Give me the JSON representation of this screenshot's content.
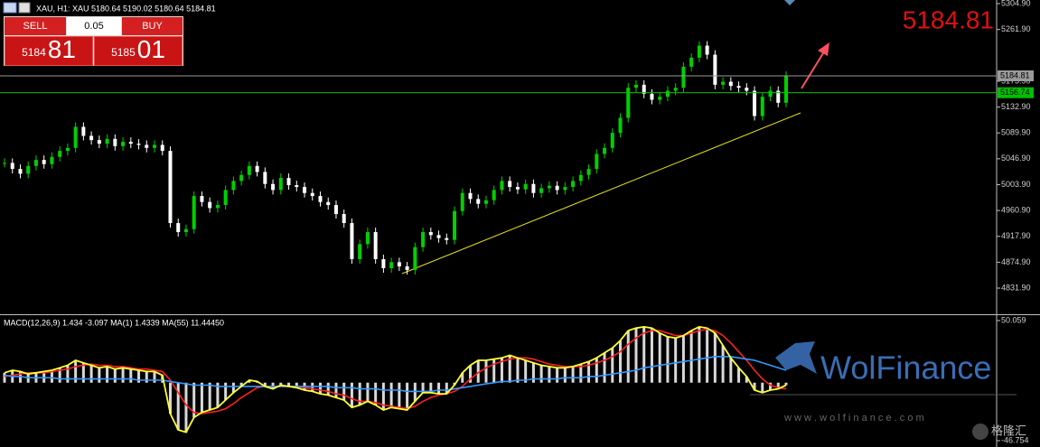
{
  "header": {
    "title": "XAU, H1: XAU 5180.64 5190.02 5180.64 5184.81",
    "big_price": "5184.81"
  },
  "trade_panel": {
    "sell": "SELL",
    "buy": "BUY",
    "volume": "0.05",
    "sell_main": "5184",
    "sell_pips": "81",
    "buy_main": "5185",
    "buy_pips": "01"
  },
  "chart_data": [
    {
      "type": "candlestick",
      "up_color": "#00d000",
      "down_color": "#ffffff",
      "ylim": [
        4788.4,
        5310.9
      ],
      "yticks": [
        {
          "value": 5304.9,
          "label": "5304.90"
        },
        {
          "value": 5261.9,
          "label": "5261.90"
        },
        {
          "value": 5175.9,
          "label": "5175.90"
        },
        {
          "value": 5132.9,
          "label": "5132.90"
        },
        {
          "value": 5089.9,
          "label": "5089.90"
        },
        {
          "value": 5046.9,
          "label": "5046.90"
        },
        {
          "value": 5003.9,
          "label": "5003.90"
        },
        {
          "value": 4960.9,
          "label": "4960.90"
        },
        {
          "value": 4917.9,
          "label": "4917.90"
        },
        {
          "value": 4874.9,
          "label": "4874.90"
        },
        {
          "value": 4831.9,
          "label": "4831.90"
        }
      ],
      "price_lines": [
        {
          "value": 5184.81,
          "color": "#9a9a9a"
        },
        {
          "value": 5156.74,
          "color": "#00c000"
        }
      ],
      "values": [
        5040,
        5030,
        5022,
        5035,
        5045,
        5038,
        5050,
        5060,
        5065,
        5100,
        5085,
        5078,
        5072,
        5080,
        5068,
        5075,
        5072,
        5070,
        5065,
        5070,
        5060,
        4940,
        4925,
        4930,
        4985,
        4975,
        4965,
        4970,
        4995,
        5010,
        5020,
        5035,
        5025,
        5005,
        4995,
        5015,
        5003,
        5000,
        4990,
        4985,
        4975,
        4970,
        4955,
        4940,
        4880,
        4905,
        4925,
        4880,
        4865,
        4875,
        4868,
        4862,
        4900,
        4925,
        4920,
        4915,
        4912,
        4960,
        4990,
        4980,
        4972,
        4978,
        4995,
        5010,
        5000,
        4996,
        5005,
        4990,
        4998,
        5002,
        4995,
        5000,
        5010,
        5020,
        5030,
        5055,
        5065,
        5090,
        5115,
        5165,
        5170,
        5155,
        5145,
        5150,
        5160,
        5165,
        5200,
        5215,
        5235,
        5220,
        5170,
        5175,
        5168,
        5165,
        5160,
        5118,
        5150,
        5160,
        5140,
        5184.81
      ]
    },
    {
      "type": "macd",
      "title": "MACD(12,26,9) 1.434 -3.097 MA(1) 1.4339 MA(55) 11.44450",
      "ylim": [
        -46.754,
        50.059
      ],
      "yticks": [
        50.059,
        -46.754
      ],
      "histogram": {
        "color": "#d8d8d8",
        "line_color": "#ffff33",
        "values": [
          8,
          10,
          9,
          7,
          8,
          9,
          10,
          12,
          14,
          18,
          16,
          14,
          12,
          13,
          11,
          12,
          11,
          10,
          9,
          9,
          6,
          -25,
          -38,
          -40,
          -28,
          -24,
          -22,
          -20,
          -14,
          -8,
          -3,
          2,
          1,
          -3,
          -5,
          -2,
          -3,
          -4,
          -6,
          -7,
          -9,
          -10,
          -12,
          -14,
          -20,
          -18,
          -15,
          -18,
          -22,
          -20,
          -21,
          -22,
          -15,
          -8,
          -8,
          -9,
          -9,
          -2,
          8,
          14,
          18,
          18,
          19,
          20,
          22,
          20,
          18,
          16,
          14,
          13,
          12,
          12,
          13,
          15,
          17,
          20,
          24,
          28,
          34,
          42,
          44,
          45,
          44,
          40,
          37,
          36,
          38,
          42,
          45,
          44,
          40,
          30,
          20,
          12,
          5,
          -6,
          -8,
          -6,
          -5,
          -2
        ]
      },
      "lines": [
        {
          "color": "#ff2020",
          "values": [
            5,
            6,
            7,
            8,
            8,
            8,
            9,
            10,
            11,
            13,
            14,
            15,
            14,
            14,
            13,
            13,
            12,
            11,
            11,
            10,
            9,
            2,
            -8,
            -18,
            -24,
            -25,
            -24,
            -23,
            -21,
            -17,
            -12,
            -8,
            -4,
            -3,
            -3,
            -3,
            -3,
            -3,
            -4,
            -5,
            -6,
            -7,
            -9,
            -10,
            -13,
            -15,
            -15,
            -16,
            -18,
            -19,
            -20,
            -21,
            -19,
            -15,
            -12,
            -10,
            -9,
            -7,
            -3,
            3,
            8,
            12,
            15,
            17,
            19,
            20,
            20,
            19,
            17,
            15,
            14,
            13,
            13,
            13,
            14,
            16,
            18,
            21,
            25,
            31,
            36,
            40,
            42,
            42,
            40,
            38,
            38,
            40,
            42,
            43,
            42,
            38,
            32,
            25,
            18,
            10,
            3,
            -2,
            -4,
            -5
          ]
        },
        {
          "color": "#3399ff",
          "values": [
            6,
            5,
            5,
            4,
            4,
            4,
            4,
            3,
            3,
            3,
            3,
            3,
            3,
            3,
            3,
            3,
            3,
            2,
            2,
            2,
            2,
            1,
            0,
            -1,
            -2,
            -2,
            -2,
            -3,
            -3,
            -3,
            -3,
            -3,
            -3,
            -3,
            -3,
            -3,
            -3,
            -3,
            -3,
            -3,
            -3,
            -3,
            -4,
            -4,
            -4,
            -5,
            -5,
            -5,
            -6,
            -6,
            -6,
            -7,
            -7,
            -7,
            -7,
            -6,
            -6,
            -5,
            -4,
            -3,
            -2,
            -1,
            0,
            1,
            1,
            2,
            2,
            3,
            3,
            3,
            3,
            4,
            4,
            4,
            5,
            5,
            6,
            7,
            8,
            9,
            10,
            12,
            13,
            14,
            15,
            16,
            17,
            18,
            19,
            20,
            21,
            21,
            21,
            20,
            19,
            18,
            16,
            14,
            12,
            10
          ]
        }
      ]
    }
  ],
  "watermark": {
    "brand": "WolFinance",
    "url": "w w w . w o l f i n a n c e . c o m",
    "source": "格隆汇"
  }
}
